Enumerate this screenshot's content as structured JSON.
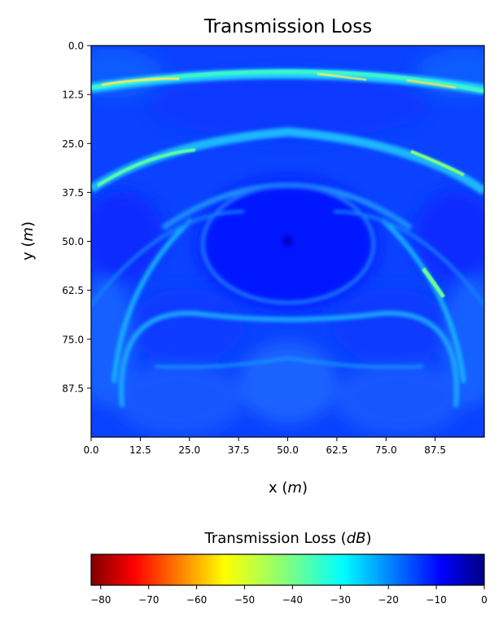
{
  "chart_data": {
    "type": "heatmap",
    "title": "Transmission Loss",
    "xlabel": {
      "text": "x (",
      "unit": "m",
      "close": ")"
    },
    "ylabel": {
      "text": "y (",
      "unit": "m",
      "close": ")"
    },
    "xlim": [
      0,
      100
    ],
    "ylim": [
      0,
      100
    ],
    "y_inverted": true,
    "x_ticks": [
      0,
      12.5,
      25,
      37.5,
      50,
      62.5,
      75,
      87.5
    ],
    "x_tick_labels": [
      "0.0",
      "12.5",
      "25.0",
      "37.5",
      "50.0",
      "62.5",
      "75.0",
      "87.5"
    ],
    "y_ticks": [
      0,
      12.5,
      25,
      37.5,
      50,
      62.5,
      75,
      87.5
    ],
    "y_tick_labels": [
      "0.0",
      "12.5",
      "25.0",
      "37.5",
      "50.0",
      "62.5",
      "75.0",
      "87.5"
    ],
    "colormap": "jet_r",
    "source_point": [
      50,
      50
    ],
    "colorbar": {
      "title": {
        "text": "Transmission Loss (",
        "unit": "dB",
        "close": ")"
      },
      "range": [
        -82,
        0
      ],
      "orientation": "horizontal",
      "ticks": [
        -80,
        -70,
        -60,
        -50,
        -40,
        -30,
        -20,
        -10,
        0
      ],
      "tick_labels": [
        "−80",
        "−70",
        "−60",
        "−50",
        "−40",
        "−30",
        "−20",
        "−10",
        "0"
      ]
    }
  }
}
